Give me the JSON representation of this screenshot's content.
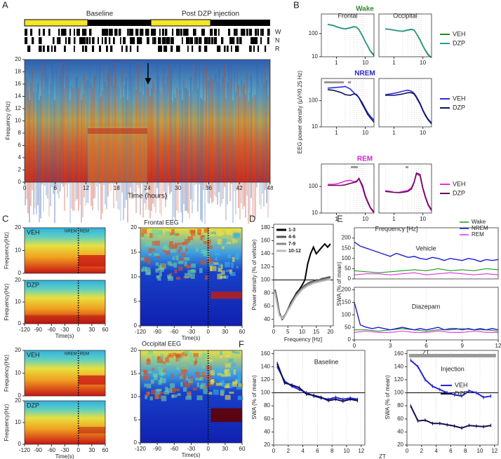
{
  "A": {
    "label": "A",
    "baseline": "Baseline",
    "post": "Post DZP injection",
    "states": [
      "W",
      "N",
      "R"
    ],
    "ylabel": "Frequency (Hz)",
    "xlabel": "Time (hours)",
    "xlim": [
      0,
      48
    ],
    "ylim": [
      0,
      20
    ],
    "xticks": [
      0,
      6,
      12,
      18,
      24,
      30,
      36,
      42,
      48
    ],
    "yticks": [
      0,
      2,
      4,
      6,
      8,
      10,
      12,
      14,
      16,
      18,
      20
    ]
  },
  "B": {
    "label": "B",
    "ylabel": "EEG power density (µV²/0.25 Hz)",
    "xlabel": "Frequency [Hz]",
    "columns": [
      "Frontal",
      "Occipital"
    ],
    "xlim": [
      0.3,
      20
    ],
    "ylim": [
      10,
      700
    ],
    "xticks": [
      1,
      10
    ],
    "yticks": [
      10,
      100
    ],
    "frequencies": [
      0.5,
      0.75,
      1,
      1.5,
      2,
      3,
      4,
      5,
      6,
      8,
      10,
      12,
      15,
      20
    ],
    "rows": [
      {
        "title": "Wake",
        "color": "#2e8b2e",
        "series": [
          {
            "name": "VEH",
            "color": "#1f8a1f",
            "frontal": [
              250,
              230,
              200,
              170,
              160,
              180,
              200,
              190,
              150,
              80,
              45,
              30,
              18,
              12
            ],
            "occipital": [
              160,
              150,
              140,
              130,
              125,
              140,
              150,
              140,
              100,
              55,
              30,
              20,
              13,
              9
            ]
          },
          {
            "name": "DZP",
            "color": "#2a9a8a",
            "frontal": [
              245,
              225,
              195,
              168,
              158,
              176,
              196,
              186,
              146,
              78,
              44,
              29,
              17,
              11
            ],
            "occipital": [
              158,
              150,
              142,
              132,
              128,
              145,
              155,
              142,
              98,
              52,
              29,
              19,
              12,
              9
            ]
          }
        ]
      },
      {
        "title": "NREM",
        "color": "#2424d0",
        "series": [
          {
            "name": "VEH",
            "color": "#2b2be0",
            "frontal": [
              300,
              310,
              320,
              330,
              350,
              280,
              200,
              160,
              130,
              80,
              50,
              35,
              25,
              18
            ],
            "occipital": [
              170,
              180,
              190,
              210,
              230,
              250,
              230,
              190,
              140,
              80,
              45,
              30,
              20,
              14
            ]
          },
          {
            "name": "DZP",
            "color": "#101060",
            "frontal": [
              260,
              250,
              230,
              200,
              170,
              160,
              180,
              170,
              130,
              70,
              45,
              30,
              22,
              15
            ],
            "occipital": [
              160,
              160,
              160,
              170,
              180,
              200,
              200,
              180,
              130,
              75,
              42,
              28,
              19,
              13
            ]
          }
        ]
      },
      {
        "title": "REM",
        "color": "#d020d0",
        "series": [
          {
            "name": "VEH",
            "color": "#e030e0",
            "frontal": [
              120,
              120,
              125,
              140,
              160,
              170,
              150,
              160,
              200,
              90,
              40,
              25,
              15,
              10
            ],
            "occipital": [
              70,
              65,
              60,
              60,
              65,
              70,
              90,
              150,
              300,
              250,
              80,
              40,
              20,
              12
            ]
          },
          {
            "name": "DZP",
            "color": "#6a0a5a",
            "frontal": [
              110,
              110,
              110,
              110,
              115,
              130,
              140,
              150,
              200,
              110,
              45,
              28,
              16,
              11
            ],
            "occipital": [
              65,
              62,
              60,
              58,
              60,
              65,
              80,
              140,
              320,
              280,
              90,
              45,
              22,
              13
            ]
          }
        ]
      }
    ]
  },
  "C": {
    "label": "C",
    "sections": [
      {
        "title": "Frontal EEG",
        "maps": [
          "VEH",
          "DZP"
        ]
      },
      {
        "title": "Occipital EEG",
        "maps": [
          "VEH",
          "DZP"
        ]
      }
    ],
    "states": [
      "NREM",
      "REM"
    ],
    "ylabel": "Frequency(Hz)",
    "xlabel": "Time(s)",
    "xlim": [
      -120,
      60
    ],
    "ylim": [
      0,
      20
    ],
    "xticks": [
      -120,
      -90,
      -60,
      -30,
      0,
      30,
      60
    ],
    "small_yticks": [
      0,
      10,
      20
    ],
    "big_yticks": [
      0,
      5,
      10,
      15,
      20
    ]
  },
  "D": {
    "label": "D",
    "ylabel": "Power density (% of vehicle)",
    "xlabel": "Frequency [Hz]",
    "xlim": [
      0,
      21
    ],
    "ylim": [
      30,
      185
    ],
    "xticks": [
      0,
      5,
      10,
      15,
      20
    ],
    "yticks": [
      40,
      60,
      80,
      100,
      120,
      140,
      160,
      180
    ],
    "reference_line": 100,
    "x": [
      0.5,
      1,
      2,
      3,
      4,
      5,
      6,
      7,
      8,
      9,
      10,
      11,
      12,
      13,
      14,
      15,
      16,
      17,
      18,
      19,
      20
    ],
    "series": [
      {
        "name": "1-3",
        "color": "#000000",
        "values": [
          85,
          75,
          50,
          40,
          45,
          55,
          65,
          72,
          80,
          85,
          92,
          100,
          125,
          140,
          150,
          140,
          145,
          150,
          155,
          150,
          155
        ]
      },
      {
        "name": "4-6",
        "color": "#555555",
        "values": [
          85,
          72,
          48,
          42,
          47,
          55,
          63,
          70,
          78,
          83,
          88,
          92,
          95,
          97,
          98,
          100,
          100,
          102,
          103,
          104,
          105
        ]
      },
      {
        "name": "7-9",
        "color": "#888888",
        "values": [
          83,
          70,
          47,
          42,
          46,
          54,
          62,
          70,
          77,
          82,
          87,
          90,
          93,
          95,
          96,
          98,
          99,
          100,
          101,
          102,
          103
        ]
      },
      {
        "name": "10-12",
        "color": "#bbbbbb",
        "values": [
          80,
          68,
          46,
          41,
          45,
          53,
          60,
          68,
          75,
          80,
          85,
          88,
          91,
          93,
          95,
          96,
          97,
          98,
          99,
          100,
          100
        ]
      }
    ]
  },
  "E": {
    "label": "E",
    "ylabel": "SWA (% of mean)",
    "xlabel": "ZT",
    "xlim": [
      0,
      12
    ],
    "xticks": [
      0,
      3,
      6,
      9,
      12
    ],
    "legend": [
      {
        "name": "Wake",
        "color": "#1a9a1a"
      },
      {
        "name": "NREM",
        "color": "#1c1cd0"
      },
      {
        "name": "REM",
        "color": "#e030e0"
      }
    ],
    "plots": [
      {
        "title": "Vehicle",
        "ylim": [
          0,
          250
        ],
        "yticks": [
          0,
          50,
          100,
          150,
          200
        ],
        "series": [
          {
            "x": [
              0,
              1,
              2,
              3,
              4,
              5,
              6,
              7,
              8,
              9,
              10,
              11,
              12
            ],
            "values": [
              40,
              35,
              30,
              35,
              40,
              45,
              40,
              50,
              40,
              45,
              40,
              50,
              45
            ]
          },
          {
            "x": [
              0,
              0.5,
              1,
              1.5,
              2,
              2.5,
              3,
              3.5,
              4,
              4.5,
              5,
              5.5,
              6,
              6.5,
              7,
              7.5,
              8,
              8.5,
              9,
              9.5,
              10,
              10.5,
              11,
              11.5,
              12
            ],
            "values": [
              180,
              160,
              150,
              140,
              130,
              120,
              110,
              125,
              115,
              105,
              110,
              100,
              95,
              105,
              100,
              90,
              100,
              95,
              90,
              100,
              95,
              85,
              95,
              90,
              95
            ]
          },
          {
            "x": [
              0,
              1,
              2,
              3,
              4,
              5,
              6,
              7,
              8,
              9,
              10,
              11,
              12
            ],
            "values": [
              20,
              25,
              25,
              20,
              25,
              30,
              20,
              25,
              30,
              25,
              20,
              25,
              20
            ]
          }
        ]
      },
      {
        "title": "Diazepam",
        "ylim": [
          0,
          210
        ],
        "yticks": [
          0,
          50,
          100,
          150,
          200
        ],
        "series": [
          {
            "x": [
              0,
              1,
              2,
              3,
              4,
              5,
              6,
              7,
              8,
              9,
              10,
              11,
              12
            ],
            "values": [
              40,
              40,
              35,
              40,
              45,
              40,
              35,
              40,
              40,
              45,
              40,
              40,
              35
            ]
          },
          {
            "x": [
              0,
              0.5,
              1,
              1.5,
              2,
              2.5,
              3,
              3.5,
              4,
              4.5,
              5,
              5.5,
              6,
              6.5,
              7,
              7.5,
              8,
              8.5,
              9,
              9.5,
              10,
              10.5,
              11,
              11.5,
              12
            ],
            "values": [
              150,
              60,
              50,
              45,
              50,
              45,
              40,
              45,
              50,
              45,
              40,
              45,
              40,
              45,
              50,
              40,
              45,
              45,
              40,
              45,
              40,
              45,
              40,
              45,
              40
            ]
          },
          {
            "x": [
              0,
              1,
              2,
              3,
              4,
              5,
              6,
              7,
              8,
              9,
              10,
              11,
              12
            ],
            "values": [
              30,
              35,
              30,
              30,
              35,
              30,
              30,
              35,
              30,
              30,
              35,
              30,
              30
            ]
          }
        ]
      }
    ]
  },
  "F": {
    "label": "F",
    "ylabel": "SWA (% of mean)",
    "xlabel": "ZT",
    "xlim": [
      0,
      12.5
    ],
    "ylim": [
      20,
      165
    ],
    "xticks": [
      0,
      2,
      4,
      6,
      8,
      10,
      12
    ],
    "yticks": [
      20,
      40,
      60,
      80,
      100,
      120,
      140,
      160
    ],
    "reference_line": 100,
    "x": [
      0.5,
      1.5,
      2.5,
      3.5,
      4.5,
      5.5,
      6.5,
      7.5,
      8.5,
      9.5,
      10.5,
      11.5
    ],
    "legend": [
      {
        "name": "VEH",
        "color": "#2424d8"
      },
      {
        "name": "DZP",
        "color": "#101050"
      }
    ],
    "plots": [
      {
        "title": "Baseline",
        "series": [
          {
            "values": [
              140,
              118,
              110,
              105,
              100,
              95,
              92,
              90,
              93,
              90,
              92,
              90
            ]
          },
          {
            "values": [
              145,
              115,
              112,
              108,
              98,
              96,
              93,
              88,
              90,
              87,
              90,
              88
            ]
          }
        ]
      },
      {
        "title": "Injection",
        "series": [
          {
            "values": [
              150,
              140,
              120,
              110,
              105,
              100,
              97,
              95,
              103,
              100,
              93,
              95
            ]
          },
          {
            "values": [
              80,
              57,
              58,
              53,
              53,
              51,
              49,
              46,
              50,
              49,
              48,
              50
            ]
          }
        ]
      }
    ]
  }
}
